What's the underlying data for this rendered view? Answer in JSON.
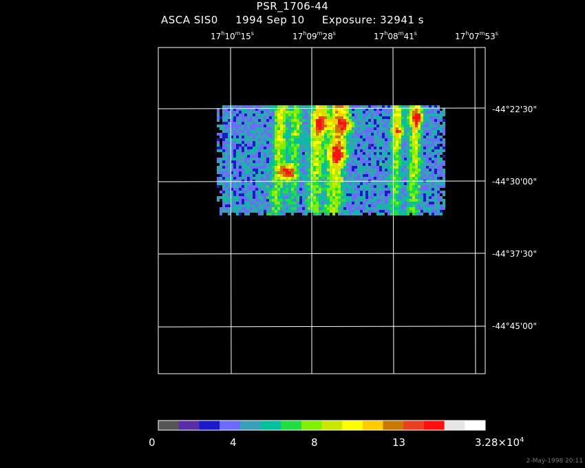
{
  "header": {
    "title": "PSR_1706-44",
    "instrument": "ASCA SIS0",
    "date": "1994 Sep 10",
    "exposure": "Exposure: 32941 s"
  },
  "axes": {
    "ra_ticks": [
      {
        "h": "17",
        "m": "10",
        "s": "15"
      },
      {
        "h": "17",
        "m": "09",
        "s": "28"
      },
      {
        "h": "17",
        "m": "08",
        "s": "41"
      },
      {
        "h": "17",
        "m": "07",
        "s": "53"
      }
    ],
    "dec_ticks": [
      "-44°22'30\"",
      "-44°30'00\"",
      "-44°37'30\"",
      "-44°45'00\""
    ]
  },
  "colorbar": {
    "colors": [
      "#555555",
      "#5a2da8",
      "#1a1acc",
      "#6b6bff",
      "#3a9fb8",
      "#00c0a0",
      "#20dd40",
      "#80f000",
      "#c8e800",
      "#ffff00",
      "#ffcc00",
      "#c87800",
      "#e84020",
      "#ff1010",
      "#e6e6e6",
      "#ffffff"
    ],
    "labels": [
      "0",
      "4",
      "8",
      "13"
    ],
    "max_label": "3.28×10",
    "max_exp": "4"
  },
  "footer": {
    "timestamp": "2-May-1998 20:11"
  },
  "chart_data": {
    "type": "heatmap",
    "title": "PSR_1706-44",
    "subtitle": "ASCA SIS0   1994 Sep 10   Exposure: 32941 s",
    "x_ticks": [
      "17h10m15s",
      "17h09m28s",
      "17h08m41s",
      "17h07m53s"
    ],
    "y_ticks": [
      "-44°22'30\"",
      "-44°30'00\"",
      "-44°37'30\"",
      "-44°45'00\""
    ],
    "colorbar_ticks": [
      0,
      4,
      8,
      13
    ],
    "colorbar_max": 32800,
    "bright_sources": [
      {
        "ra": "17h09m37s",
        "dec": "-44°27'",
        "level": 13
      },
      {
        "ra": "17h09m20s",
        "dec": "-44°23'",
        "level": 13
      },
      {
        "ra": "17h09m05s",
        "dec": "-44°25'",
        "level": 13
      },
      {
        "ra": "17h08m32s",
        "dec": "-44°23'",
        "level": 13
      }
    ],
    "grid": true
  }
}
